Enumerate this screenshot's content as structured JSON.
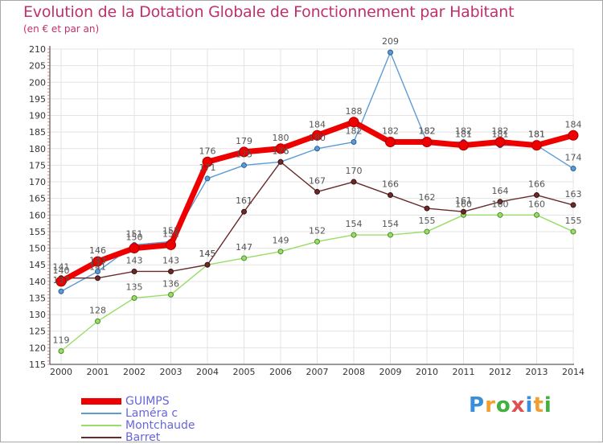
{
  "title": "Evolution de la Dotation Globale de Fonctionnement par Habitant",
  "subtitle": "(en € et par an)",
  "logo_text": "Proxiti",
  "chart_data": {
    "type": "line",
    "title": "Evolution de la Dotation Globale de Fonctionnement par Habitant",
    "subtitle": "(en € et par an)",
    "x": [
      2000,
      2001,
      2002,
      2003,
      2004,
      2005,
      2006,
      2007,
      2008,
      2009,
      2010,
      2011,
      2012,
      2013,
      2014
    ],
    "ylim": [
      115,
      210
    ],
    "yticks": [
      115,
      120,
      125,
      130,
      135,
      140,
      145,
      150,
      155,
      160,
      165,
      170,
      175,
      180,
      185,
      190,
      195,
      200,
      205,
      210
    ],
    "grid": true,
    "legend_placement": "bottom-left",
    "series": [
      {
        "name": "Laméra c",
        "color": "#5b9bd5",
        "values": [
          137,
          143,
          151,
          152,
          171,
          175,
          176,
          180,
          182,
          209,
          182,
          182,
          181,
          181,
          174
        ]
      },
      {
        "name": "Montchaude",
        "color": "#99dd66",
        "values": [
          119,
          128,
          135,
          136,
          145,
          147,
          149,
          152,
          154,
          154,
          155,
          160,
          160,
          160,
          155
        ]
      },
      {
        "name": "Barret",
        "color": "#6b2a2a",
        "values": [
          141,
          141,
          143,
          143,
          145,
          161,
          176,
          167,
          170,
          166,
          162,
          161,
          164,
          166,
          163
        ]
      },
      {
        "name": "GUIMPS",
        "color": "#ee0000",
        "values": [
          140,
          146,
          150,
          151,
          176,
          179,
          180,
          184,
          188,
          182,
          182,
          181,
          182,
          181,
          184
        ]
      }
    ]
  }
}
